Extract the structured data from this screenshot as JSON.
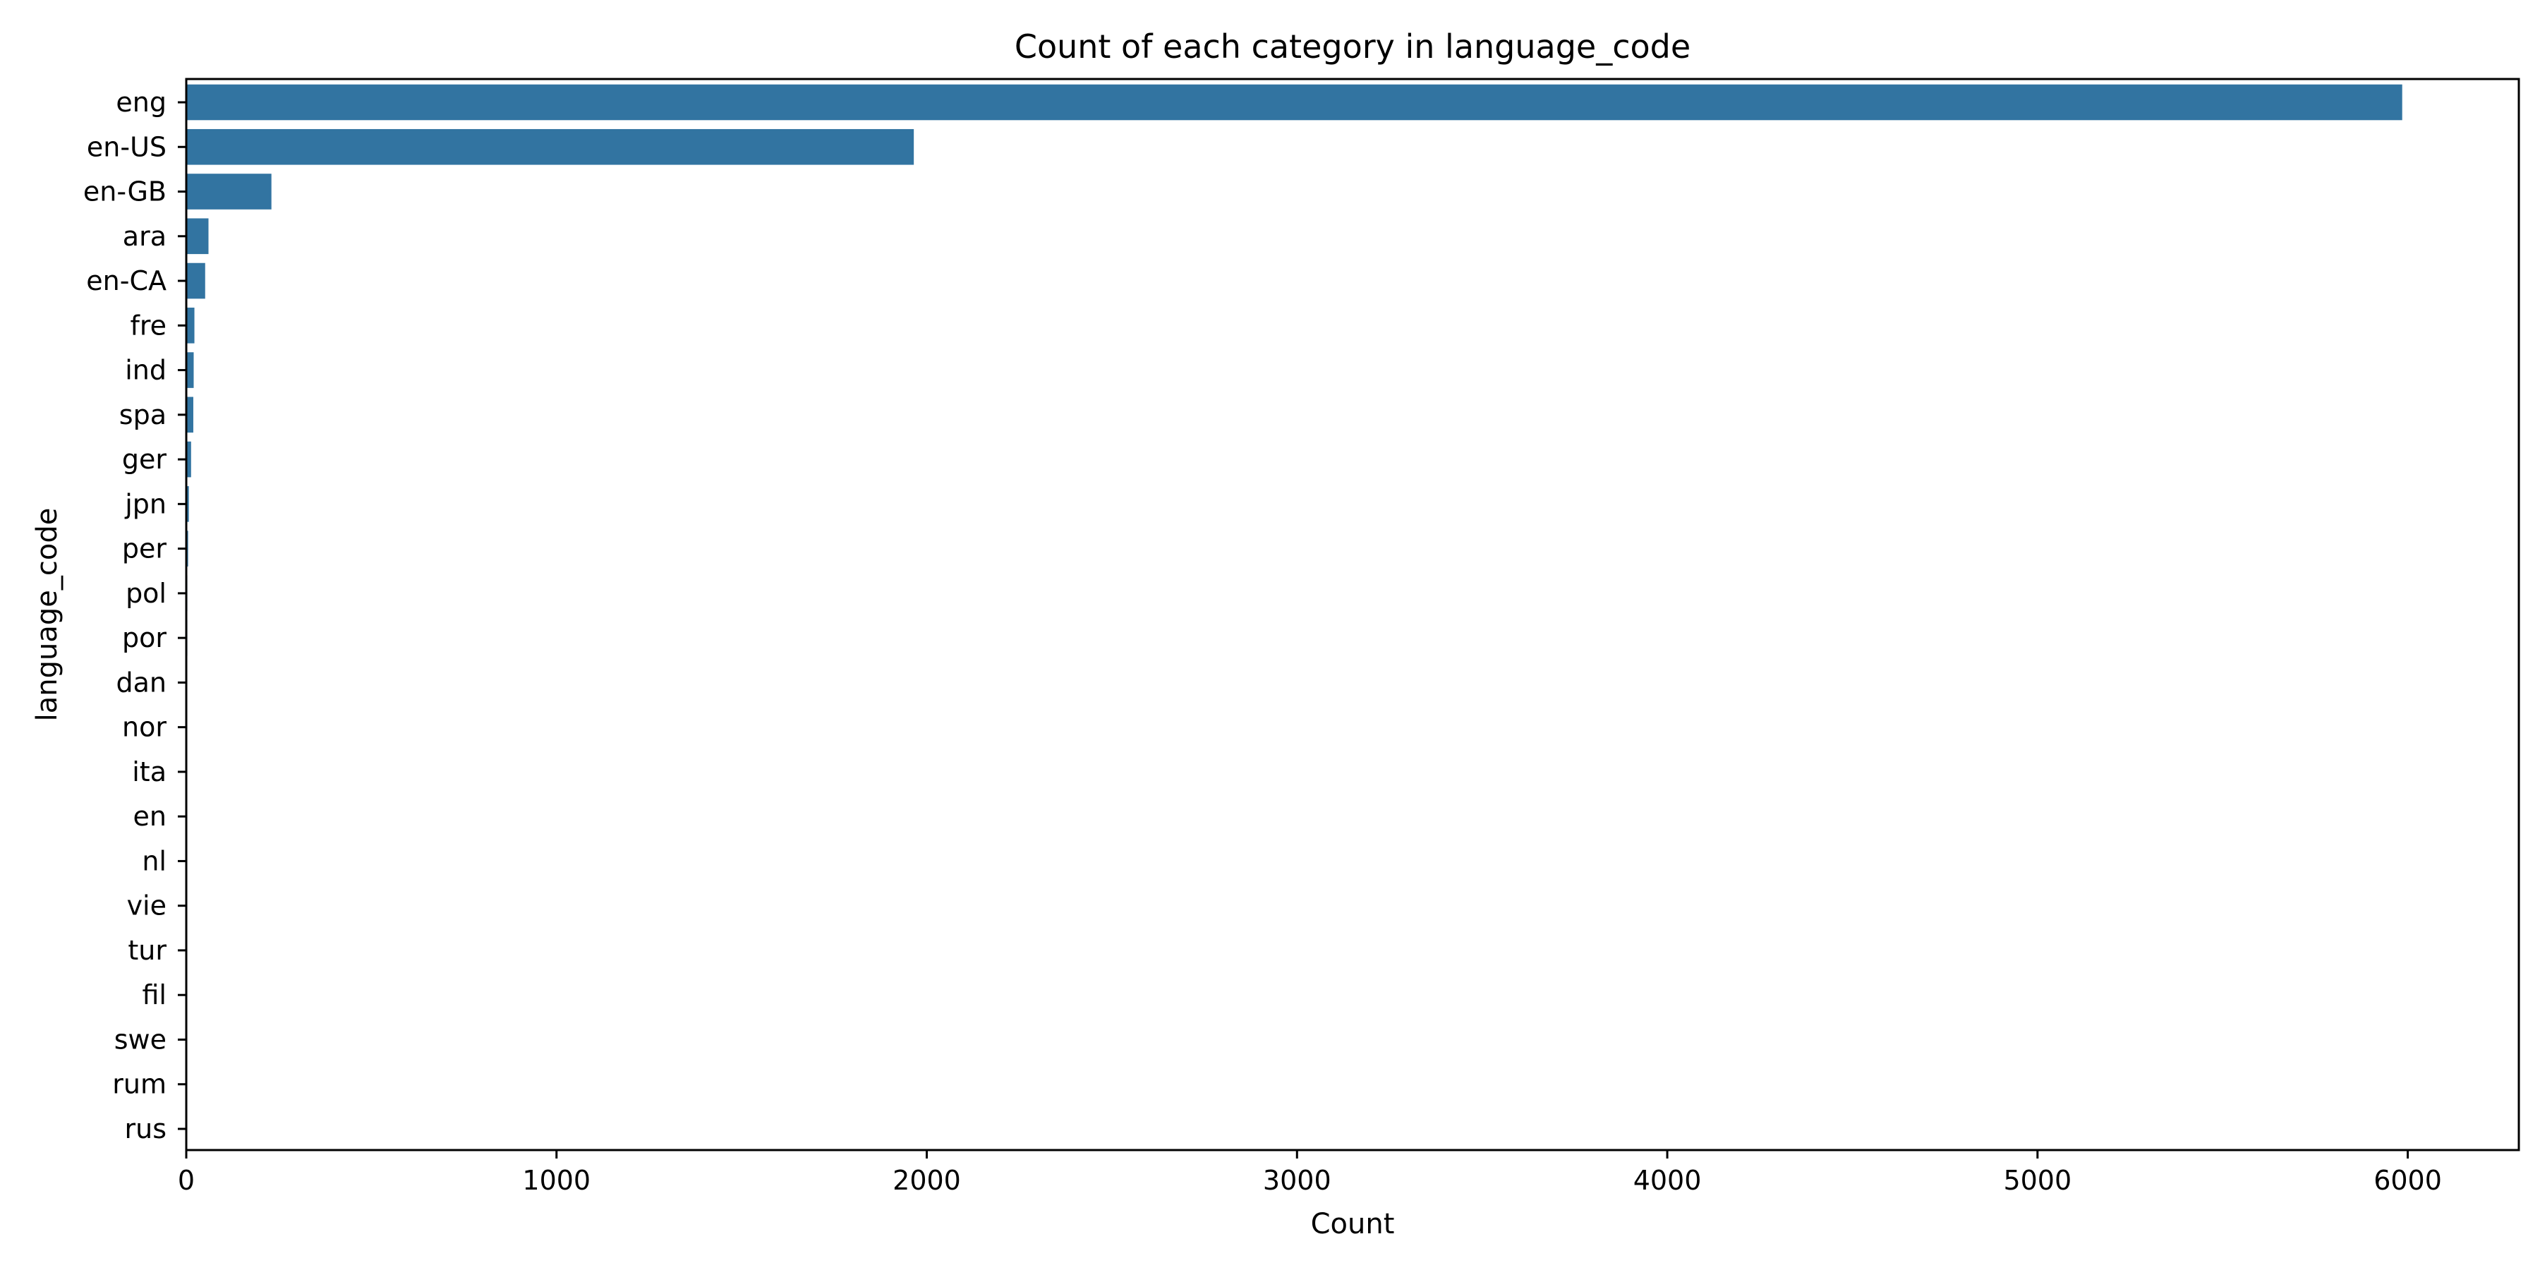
{
  "chart_data": {
    "type": "bar",
    "orientation": "horizontal",
    "title": "Count of each category in language_code",
    "xlabel": "Count",
    "ylabel": "language_code",
    "categories": [
      "eng",
      "en-US",
      "en-GB",
      "ara",
      "en-CA",
      "fre",
      "ind",
      "spa",
      "ger",
      "jpn",
      "per",
      "pol",
      "por",
      "dan",
      "nor",
      "ita",
      "en",
      "nl",
      "vie",
      "tur",
      "fil",
      "swe",
      "rum",
      "rus"
    ],
    "values": [
      5985,
      1965,
      230,
      60,
      51,
      22,
      20,
      19,
      13,
      7,
      5,
      3,
      3,
      1,
      1,
      1,
      1,
      1,
      1,
      1,
      1,
      1,
      1,
      1
    ],
    "xlim": [
      0,
      6300
    ],
    "xticks": [
      0,
      1000,
      2000,
      3000,
      4000,
      5000,
      6000
    ],
    "grid": false,
    "legend": "none",
    "bar_color": "#3274a1"
  }
}
